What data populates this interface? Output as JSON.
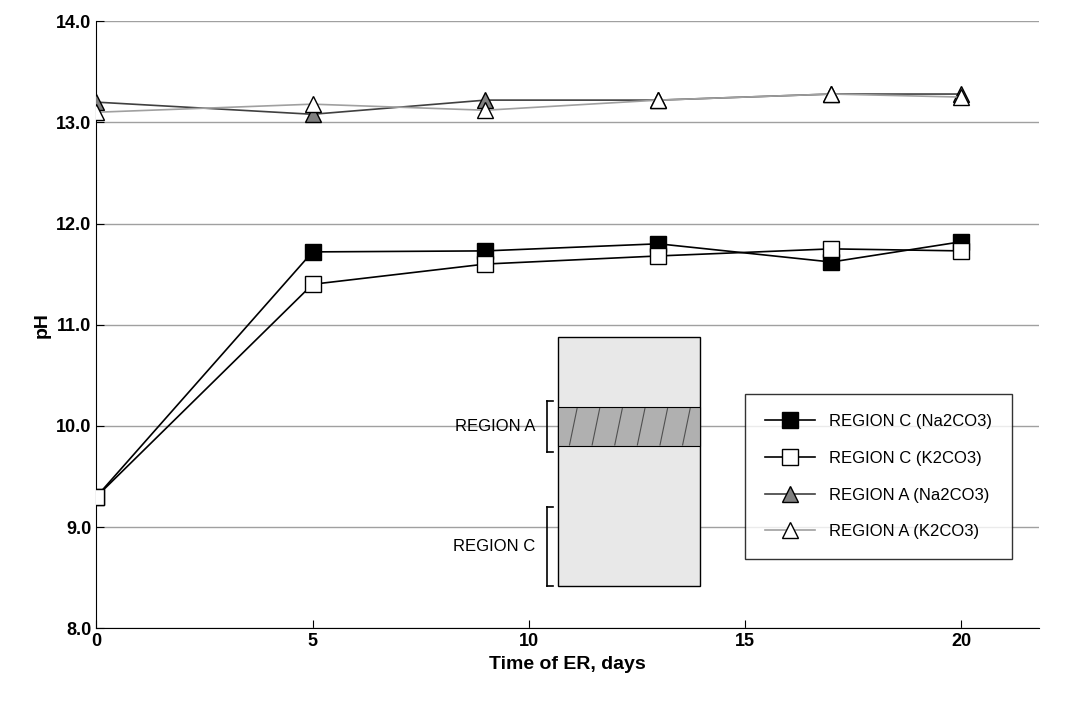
{
  "chart_data": {
    "type": "line",
    "x_label": "Time of ER, days",
    "y_label": "pH",
    "x": [
      0,
      5,
      9,
      13,
      17,
      20
    ],
    "series": [
      {
        "name": "REGION C (Na2CO3)",
        "color": "#000000",
        "marker": "square",
        "values": [
          9.3,
          11.72,
          11.73,
          11.8,
          11.62,
          11.82
        ]
      },
      {
        "name": "REGION C (K2CO3)",
        "color": "#000000",
        "marker": "square",
        "values": [
          9.3,
          11.4,
          11.6,
          11.68,
          11.75,
          11.73
        ]
      },
      {
        "name": "REGION A (Na2CO3)",
        "color": "#404040",
        "marker": "triangle",
        "values": [
          13.2,
          13.08,
          13.22,
          13.22,
          13.28,
          13.28
        ]
      },
      {
        "name": "REGION A (K2CO3)",
        "color": "#a0a0a0",
        "marker": "triangle",
        "values": [
          13.1,
          13.18,
          13.12,
          13.22,
          13.28,
          13.25
        ]
      }
    ],
    "xlim": [
      0,
      21.8
    ],
    "xticks": [
      0,
      5,
      10,
      15,
      20
    ],
    "ylim": [
      8,
      14
    ],
    "yticks": [
      {
        "value": 8,
        "label": "8.0"
      },
      {
        "value": 9,
        "label": "9.0"
      },
      {
        "value": 10,
        "label": "10.0"
      },
      {
        "value": 11,
        "label": "11.0"
      },
      {
        "value": 12,
        "label": "12.0"
      },
      {
        "value": 13,
        "label": "13.0"
      },
      {
        "value": 14,
        "label": "14.0"
      }
    ],
    "grid": true,
    "legend": "lower right",
    "annotations": [
      "REGION A",
      "REGION C"
    ]
  }
}
